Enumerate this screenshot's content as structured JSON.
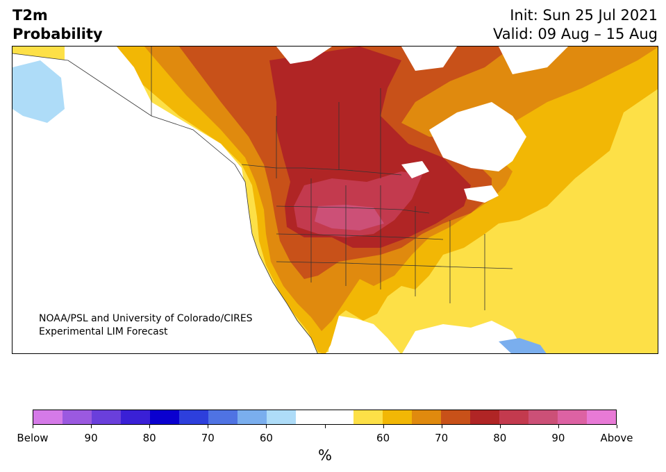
{
  "title": {
    "left_line1": "T2m",
    "left_line2": "Probability",
    "right_line1": "Init: Sun 25 Jul 2021",
    "right_line2": "Valid: 09 Aug – 15 Aug"
  },
  "credit": {
    "line1": "NOAA/PSL and University of Colorado/CIRES",
    "line2": "Experimental LIM Forecast"
  },
  "colorbar": {
    "units": "%",
    "colors": [
      "#d57ae8",
      "#9b59e0",
      "#6a3fdb",
      "#3a20d6",
      "#0a00cf",
      "#2d3fdc",
      "#4f73e3",
      "#7aaeee",
      "#aedcf8",
      "#ffffff",
      "#ffffff",
      "#fde047",
      "#f2b705",
      "#e08a0e",
      "#c85119",
      "#b02525",
      "#c33a4e",
      "#cc5077",
      "#dd62a3",
      "#e87ad6"
    ],
    "tick_labels": [
      "Below",
      "90",
      "80",
      "70",
      "60",
      "",
      "",
      "60",
      "70",
      "80",
      "90",
      "Above"
    ]
  },
  "map": {
    "description_colors": {
      "ocean": "#ffffff",
      "above_55": "#fde047",
      "above_60": "#f2b705",
      "above_65": "#e08a0e",
      "above_70": "#c85119",
      "above_75": "#b02525",
      "above_80": "#c33a4e",
      "above_85": "#cc5077",
      "below_55": "#aedcf8",
      "below_60": "#7aaeee"
    }
  }
}
